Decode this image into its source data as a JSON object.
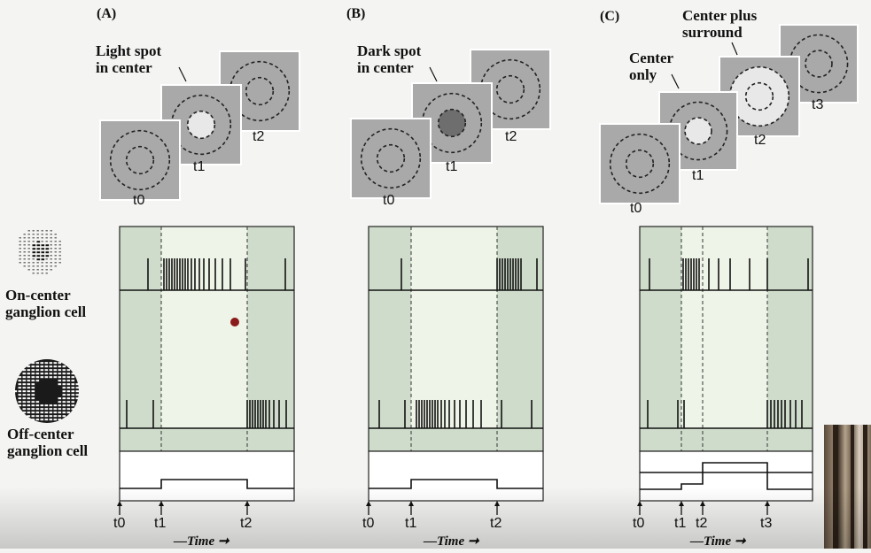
{
  "panels": [
    {
      "letter": "(A)",
      "stimulus_label": "Light spot\nin center",
      "frame_labels": [
        "t0",
        "t1",
        "t2"
      ],
      "time_ticks": [
        "t0",
        "t1",
        "t2"
      ]
    },
    {
      "letter": "(B)",
      "stimulus_label": "Dark spot\nin center",
      "frame_labels": [
        "t0",
        "t1",
        "t2"
      ],
      "time_ticks": [
        "t0",
        "t1",
        "t2"
      ]
    },
    {
      "letter": "(C)",
      "stimulus_label": "Center\nonly",
      "stimulus_label_2": "Center plus\nsurround",
      "frame_labels": [
        "t0",
        "t1",
        "t2",
        "t3"
      ],
      "time_ticks": [
        "t0",
        "t1",
        "t2",
        "t3"
      ]
    }
  ],
  "cells": {
    "on_center": "On-center\nganglion cell",
    "off_center": "Off-center\nganglion cell"
  },
  "time_axis_label": "Time",
  "colors": {
    "stimulus_bg": "#a9a9a9",
    "light_spot": "#e8e8e8",
    "dark_spot": "#6e6e6e",
    "plot_dark": "#cfdccb",
    "plot_light": "#eef4e7",
    "marker": "#8b1a1a"
  },
  "chart_data": {
    "type": "diagram",
    "panels": [
      {
        "id": "A",
        "on_center_spikes_relative_to_t1_t2": "sparse before t1; dense burst after t1 fading; sparse after t2",
        "off_center_spikes": "sparse before t1; silent between t1 and t2; burst after t2"
      },
      {
        "id": "B",
        "on_center_spikes": "sparse before t1; silent during t1–t2; burst after t2",
        "off_center_spikes": "sparse before t1; burst after t1 fading; sparse after t2"
      },
      {
        "id": "C",
        "on_center_spikes": "burst t1–t2; moderate t2–t3; sparse after t3",
        "off_center_spikes": "sparse before t1; silent t1–t3; moderate burst after t3"
      }
    ]
  }
}
